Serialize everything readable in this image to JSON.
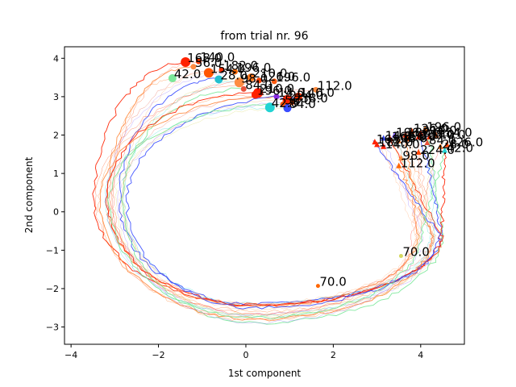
{
  "chart_data": {
    "type": "line",
    "title": "from trial nr. 96",
    "xlabel": "1st component",
    "ylabel": "2nd component",
    "xlim": [
      -4.15,
      5.0
    ],
    "ylim": [
      -3.45,
      4.3
    ],
    "xticks": [
      -4,
      -2,
      0,
      2,
      4
    ],
    "yticks": [
      -3,
      -2,
      -1,
      0,
      1,
      2,
      3,
      4
    ],
    "xtick_labels": [
      "−4",
      "−2",
      "0",
      "2",
      "4"
    ],
    "ytick_labels": [
      "−3",
      "−2",
      "−1",
      "0",
      "1",
      "2",
      "3",
      "4"
    ],
    "grid": false,
    "legend": "none",
    "trajectory_colors": [
      "#ff2200",
      "#ff4000",
      "#ff6600",
      "#ff8c42",
      "#ffa060",
      "#e8513a",
      "#3a4dff",
      "#8a66ff",
      "#22d3d3",
      "#7be89a",
      "#d6d860",
      "#ff3020"
    ],
    "start_markers": [
      {
        "x": -1.38,
        "y": 3.9,
        "color": "#ff2200",
        "label": "168.0"
      },
      {
        "x": -1.08,
        "y": 3.92,
        "color": "#ff3a00",
        "label": "140.0"
      },
      {
        "x": -1.68,
        "y": 3.48,
        "color": "#7be89a",
        "label": "42.0"
      },
      {
        "x": -1.2,
        "y": 3.78,
        "color": "#ff8c42",
        "label": "56.0"
      },
      {
        "x": -0.85,
        "y": 3.62,
        "color": "#ff5500",
        "label": "154.0"
      },
      {
        "x": -0.55,
        "y": 3.7,
        "color": "#ff2d00",
        "label": "182.0"
      },
      {
        "x": -0.62,
        "y": 3.45,
        "color": "#22bfcf",
        "label": "28.0"
      },
      {
        "x": -0.25,
        "y": 3.65,
        "color": "#ff6a00",
        "label": "196.0"
      },
      {
        "x": -0.15,
        "y": 3.37,
        "color": "#ff8c42",
        "label": "98.0"
      },
      {
        "x": -0.05,
        "y": 3.2,
        "color": "#e8513a",
        "label": "84.0"
      },
      {
        "x": 0.12,
        "y": 3.5,
        "color": "#ff7a20",
        "label": "210.0"
      },
      {
        "x": 0.3,
        "y": 3.42,
        "color": "#ff4000",
        "label": "126.0"
      },
      {
        "x": 0.28,
        "y": 3.1,
        "color": "#ff1a00",
        "label": "210.0"
      },
      {
        "x": 0.65,
        "y": 3.4,
        "color": "#ff5a10",
        "label": "196.0"
      },
      {
        "x": 0.22,
        "y": 3.05,
        "color": "#ff2000",
        "label": "196.0"
      },
      {
        "x": 0.7,
        "y": 3.0,
        "color": "#8a2be2",
        "label": "14.0"
      },
      {
        "x": 0.95,
        "y": 2.92,
        "color": "#ff2200",
        "label": "224.0"
      },
      {
        "x": 1.6,
        "y": 3.18,
        "color": "#ff8c42",
        "label": "112.0"
      },
      {
        "x": 1.2,
        "y": 3.0,
        "color": "#ff3000",
        "label": "140.0"
      },
      {
        "x": 1.05,
        "y": 2.85,
        "color": "#ff4500",
        "label": "238.0"
      },
      {
        "x": 0.55,
        "y": 2.72,
        "color": "#22d3d3",
        "label": "42.0"
      },
      {
        "x": 0.85,
        "y": 2.8,
        "color": "#ff5500",
        "label": "56.0"
      },
      {
        "x": 0.95,
        "y": 2.7,
        "color": "#3a4dff",
        "label": "84.0"
      }
    ],
    "end_markers": [
      {
        "x": 3.3,
        "y": 1.9,
        "color": "#ff2200",
        "label": "168.0"
      },
      {
        "x": 3.5,
        "y": 1.85,
        "color": "#ff8c42",
        "label": "98.0"
      },
      {
        "x": 3.7,
        "y": 1.9,
        "color": "#ff5500",
        "label": "56.0"
      },
      {
        "x": 3.65,
        "y": 2.0,
        "color": "#ff2d00",
        "label": "182.0"
      },
      {
        "x": 3.8,
        "y": 2.1,
        "color": "#ff4000",
        "label": "126.0"
      },
      {
        "x": 3.95,
        "y": 1.95,
        "color": "#ff2000",
        "label": "238.0"
      },
      {
        "x": 4.0,
        "y": 2.05,
        "color": "#ff2200",
        "label": "210.0"
      },
      {
        "x": 4.1,
        "y": 2.15,
        "color": "#ff6a00",
        "label": "196.0"
      },
      {
        "x": 4.15,
        "y": 1.8,
        "color": "#e8513a",
        "label": "84.0"
      },
      {
        "x": 4.2,
        "y": 1.95,
        "color": "#ff3000",
        "label": "140.0"
      },
      {
        "x": 4.35,
        "y": 2.0,
        "color": "#ff5a10",
        "label": "154.0"
      },
      {
        "x": 4.45,
        "y": 1.7,
        "color": "#ff7a20",
        "label": "28.0"
      },
      {
        "x": 4.55,
        "y": 1.6,
        "color": "#22d3d3",
        "label": "42.0"
      },
      {
        "x": 3.95,
        "y": 1.55,
        "color": "#ff4500",
        "label": "224.0"
      },
      {
        "x": 3.55,
        "y": 1.4,
        "color": "#ff8c42",
        "label": "98.0"
      },
      {
        "x": 3.5,
        "y": 1.2,
        "color": "#ff6600",
        "label": "112.0"
      },
      {
        "x": 3.15,
        "y": 1.7,
        "color": "#ff1a00",
        "label": "140.0"
      },
      {
        "x": 3.0,
        "y": 1.75,
        "color": "#ff2000",
        "label": "182.0"
      },
      {
        "x": 2.95,
        "y": 1.82,
        "color": "#ff2200",
        "label": "168.0"
      },
      {
        "x": 3.15,
        "y": 1.92,
        "color": "#3a4dff",
        "label": "14.0"
      },
      {
        "x": 3.4,
        "y": 2.0,
        "color": "#8a66ff",
        "label": "196.0"
      },
      {
        "x": 4.6,
        "y": 1.75,
        "color": "#ff4000",
        "label": "126.0"
      }
    ],
    "midway_markers": [
      {
        "x": 1.65,
        "y": -1.93,
        "color": "#ff6600",
        "label": "70.0"
      },
      {
        "x": 3.55,
        "y": -1.15,
        "color": "#d6d860",
        "label": "70.0"
      }
    ]
  }
}
